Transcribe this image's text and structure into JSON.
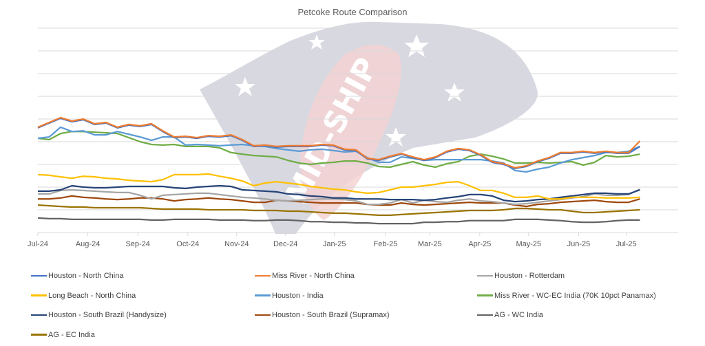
{
  "chart_data": {
    "type": "line",
    "title": "Petcoke Route Comparison",
    "xlabel": "",
    "ylabel": "",
    "y_axis_labels_visible": false,
    "y_units_note": "No y-axis scale printed; values expressed in gridline steps above the x-axis (axis = 0, top gridline = 9)",
    "ylim": [
      0,
      9
    ],
    "grid": true,
    "legend_position": "bottom",
    "x_tick_labels": [
      "Jul-24",
      "Aug-24",
      "Sep-24",
      "Oct-24",
      "Nov-24",
      "Dec-24",
      "Jan-25",
      "Feb-25",
      "Mar-25",
      "Apr-25",
      "May-25",
      "Jun-25",
      "Jul-25"
    ],
    "x_tick_week_index": [
      0,
      4.4,
      8.8,
      13.2,
      17.5,
      21.8,
      26.1,
      30.6,
      34.5,
      38.9,
      43.2,
      47.6,
      51.8
    ],
    "x_points_per_series": 54,
    "x_interval": "weekly",
    "watermark": "MID-SHIP",
    "series": [
      {
        "name": "Houston - North China",
        "color": "#4472C4",
        "values": [
          4.61,
          4.82,
          5.03,
          4.88,
          4.97,
          4.76,
          4.82,
          4.61,
          4.73,
          4.67,
          4.76,
          4.45,
          4.18,
          4.21,
          4.15,
          4.24,
          4.21,
          4.27,
          4.06,
          3.79,
          3.82,
          3.76,
          3.79,
          3.79,
          3.79,
          3.85,
          3.82,
          3.64,
          3.61,
          3.24,
          3.18,
          3.33,
          3.45,
          3.3,
          3.18,
          3.3,
          3.55,
          3.67,
          3.61,
          3.39,
          3.09,
          3.0,
          2.82,
          2.91,
          3.12,
          3.27,
          3.49,
          3.49,
          3.55,
          3.49,
          3.55,
          3.49,
          3.49,
          3.79
        ]
      },
      {
        "name": "Miss River - North China",
        "color": "#ED7D31",
        "values": [
          4.64,
          4.85,
          5.06,
          4.91,
          5.0,
          4.79,
          4.85,
          4.64,
          4.76,
          4.7,
          4.79,
          4.48,
          4.21,
          4.24,
          4.18,
          4.27,
          4.24,
          4.3,
          4.09,
          3.82,
          3.85,
          3.79,
          3.82,
          3.82,
          3.82,
          3.88,
          3.85,
          3.67,
          3.64,
          3.27,
          3.21,
          3.36,
          3.48,
          3.33,
          3.21,
          3.33,
          3.58,
          3.7,
          3.64,
          3.42,
          3.12,
          3.03,
          2.85,
          2.94,
          3.15,
          3.3,
          3.52,
          3.52,
          3.58,
          3.52,
          3.58,
          3.52,
          3.52,
          4.03
        ]
      },
      {
        "name": "Houston - Rotterdam",
        "color": "#A5A5A5",
        "values": [
          1.7,
          1.7,
          1.85,
          1.88,
          1.85,
          1.82,
          1.79,
          1.76,
          1.76,
          1.64,
          1.48,
          1.64,
          1.67,
          1.7,
          1.73,
          1.73,
          1.67,
          1.61,
          1.55,
          1.52,
          1.48,
          1.42,
          1.39,
          1.42,
          1.45,
          1.48,
          1.48,
          1.45,
          1.39,
          1.24,
          1.24,
          1.3,
          1.45,
          1.3,
          1.42,
          1.36,
          1.33,
          1.42,
          1.48,
          1.39,
          1.36,
          1.3,
          1.24,
          1.27,
          1.33,
          1.39,
          1.45,
          1.52,
          1.58,
          1.7,
          1.64,
          1.64,
          1.67,
          1.91
        ]
      },
      {
        "name": "Long Beach - North China",
        "color": "#FFC000",
        "values": [
          2.55,
          2.52,
          2.45,
          2.39,
          2.48,
          2.45,
          2.39,
          2.36,
          2.3,
          2.27,
          2.24,
          2.33,
          2.55,
          2.55,
          2.55,
          2.58,
          2.48,
          2.39,
          2.27,
          2.06,
          2.18,
          2.24,
          2.18,
          2.12,
          2.03,
          1.97,
          1.91,
          1.88,
          1.79,
          1.73,
          1.76,
          1.88,
          2.0,
          2.0,
          2.06,
          2.12,
          2.21,
          2.24,
          2.06,
          1.85,
          1.85,
          1.73,
          1.55,
          1.55,
          1.61,
          1.48,
          1.48,
          1.55,
          1.55,
          1.55,
          1.52,
          1.52,
          1.52,
          1.55
        ]
      },
      {
        "name": "Houston - India",
        "color": "#5B9BD5",
        "values": [
          4.15,
          4.21,
          4.64,
          4.45,
          4.48,
          4.3,
          4.3,
          4.45,
          4.33,
          4.21,
          4.06,
          4.21,
          4.21,
          3.85,
          3.88,
          3.85,
          3.82,
          3.85,
          3.88,
          3.82,
          3.79,
          3.7,
          3.64,
          3.58,
          3.64,
          3.67,
          3.61,
          3.55,
          3.58,
          3.3,
          3.09,
          3.09,
          3.33,
          3.27,
          3.18,
          3.21,
          3.21,
          3.21,
          3.21,
          3.21,
          3.15,
          3.06,
          2.73,
          2.67,
          2.79,
          2.88,
          3.06,
          3.21,
          3.3,
          3.39,
          3.52,
          3.52,
          3.58,
          3.79
        ]
      },
      {
        "name": "Miss River - WC-EC India (70K 10pct Panamax)",
        "color": "#70AD47",
        "values": [
          4.15,
          4.09,
          4.36,
          4.45,
          4.45,
          4.42,
          4.39,
          4.36,
          4.18,
          4.0,
          3.88,
          3.85,
          3.88,
          3.79,
          3.79,
          3.79,
          3.73,
          3.52,
          3.45,
          3.39,
          3.36,
          3.33,
          3.18,
          3.06,
          3.0,
          3.06,
          3.09,
          3.15,
          3.15,
          3.06,
          2.91,
          2.88,
          3.0,
          3.12,
          2.97,
          2.88,
          3.03,
          3.12,
          3.36,
          3.45,
          3.36,
          3.24,
          3.06,
          3.06,
          3.09,
          3.06,
          3.09,
          3.12,
          2.97,
          3.09,
          3.39,
          3.33,
          3.36,
          3.45
        ]
      },
      {
        "name": "Houston - South Brazil (Handysize)",
        "color": "#264478",
        "values": [
          1.82,
          1.82,
          1.88,
          2.06,
          2.0,
          1.97,
          1.97,
          2.0,
          2.03,
          2.03,
          2.03,
          2.03,
          1.97,
          1.94,
          2.0,
          2.03,
          2.06,
          2.03,
          1.88,
          1.85,
          1.82,
          1.79,
          1.7,
          1.67,
          1.61,
          1.58,
          1.52,
          1.52,
          1.48,
          1.48,
          1.48,
          1.45,
          1.45,
          1.45,
          1.42,
          1.45,
          1.52,
          1.58,
          1.67,
          1.67,
          1.61,
          1.42,
          1.36,
          1.39,
          1.45,
          1.48,
          1.55,
          1.61,
          1.67,
          1.73,
          1.73,
          1.7,
          1.7,
          1.88
        ]
      },
      {
        "name": "Houston - South Brazil (Supramax)",
        "color": "#9E480E",
        "values": [
          1.48,
          1.48,
          1.52,
          1.61,
          1.55,
          1.52,
          1.48,
          1.45,
          1.48,
          1.52,
          1.52,
          1.48,
          1.39,
          1.45,
          1.48,
          1.52,
          1.48,
          1.45,
          1.39,
          1.33,
          1.33,
          1.42,
          1.39,
          1.36,
          1.33,
          1.3,
          1.3,
          1.3,
          1.3,
          1.24,
          1.21,
          1.21,
          1.3,
          1.24,
          1.21,
          1.24,
          1.27,
          1.3,
          1.33,
          1.3,
          1.3,
          1.3,
          1.21,
          1.15,
          1.24,
          1.27,
          1.33,
          1.36,
          1.39,
          1.42,
          1.36,
          1.33,
          1.33,
          1.48
        ]
      },
      {
        "name": "AG - WC India",
        "color": "#636363",
        "values": [
          0.64,
          0.61,
          0.61,
          0.58,
          0.58,
          0.58,
          0.58,
          0.58,
          0.58,
          0.58,
          0.55,
          0.55,
          0.58,
          0.58,
          0.58,
          0.58,
          0.55,
          0.55,
          0.55,
          0.52,
          0.52,
          0.55,
          0.55,
          0.52,
          0.48,
          0.48,
          0.45,
          0.45,
          0.42,
          0.42,
          0.39,
          0.39,
          0.39,
          0.39,
          0.45,
          0.45,
          0.48,
          0.48,
          0.52,
          0.52,
          0.52,
          0.52,
          0.58,
          0.58,
          0.58,
          0.55,
          0.52,
          0.48,
          0.45,
          0.45,
          0.48,
          0.52,
          0.55,
          0.55
        ]
      },
      {
        "name": "AG - EC India",
        "color": "#997300",
        "values": [
          1.21,
          1.18,
          1.15,
          1.12,
          1.12,
          1.09,
          1.09,
          1.09,
          1.09,
          1.09,
          1.06,
          1.03,
          1.03,
          1.03,
          1.03,
          1.0,
          1.0,
          1.0,
          1.0,
          0.97,
          0.97,
          0.97,
          0.94,
          0.94,
          0.91,
          0.88,
          0.85,
          0.85,
          0.82,
          0.79,
          0.76,
          0.76,
          0.79,
          0.82,
          0.85,
          0.88,
          0.91,
          0.94,
          0.97,
          0.97,
          0.97,
          1.0,
          1.06,
          1.06,
          1.03,
          1.0,
          1.0,
          0.94,
          0.88,
          0.88,
          0.91,
          0.94,
          0.97,
          1.0
        ]
      }
    ]
  }
}
